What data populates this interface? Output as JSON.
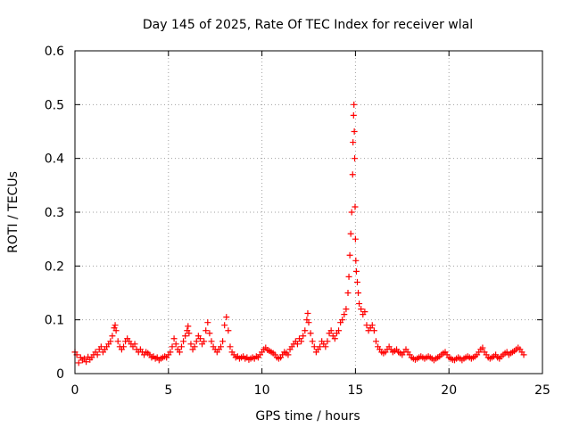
{
  "chart_data": {
    "type": "scatter",
    "title": "Day 145 of 2025, Rate Of TEC Index for receiver wlal",
    "xlabel": "GPS time / hours",
    "ylabel": "ROTI / TECUs",
    "xlim": [
      0,
      25
    ],
    "ylim": [
      0,
      0.6
    ],
    "xticks": [
      0,
      5,
      10,
      15,
      20,
      25
    ],
    "yticks": [
      0,
      0.1,
      0.2,
      0.3,
      0.4,
      0.5,
      0.6
    ],
    "xtick_labels": [
      "0",
      "5",
      "10",
      "15",
      "20",
      "25"
    ],
    "ytick_labels": [
      "0",
      "0.1",
      "0.2",
      "0.3",
      "0.4",
      "0.5",
      "0.6"
    ],
    "grid": true,
    "marker": "plus",
    "color": "#ff0000",
    "points": [
      [
        0.0,
        0.04
      ],
      [
        0.1,
        0.035
      ],
      [
        0.2,
        0.02
      ],
      [
        0.3,
        0.03
      ],
      [
        0.4,
        0.025
      ],
      [
        0.5,
        0.028
      ],
      [
        0.6,
        0.022
      ],
      [
        0.7,
        0.031
      ],
      [
        0.8,
        0.026
      ],
      [
        0.9,
        0.03
      ],
      [
        1.0,
        0.035
      ],
      [
        1.1,
        0.04
      ],
      [
        1.2,
        0.035
      ],
      [
        1.3,
        0.045
      ],
      [
        1.4,
        0.05
      ],
      [
        1.5,
        0.04
      ],
      [
        1.6,
        0.045
      ],
      [
        1.7,
        0.05
      ],
      [
        1.8,
        0.055
      ],
      [
        1.9,
        0.06
      ],
      [
        2.0,
        0.07
      ],
      [
        2.1,
        0.085
      ],
      [
        2.15,
        0.09
      ],
      [
        2.2,
        0.08
      ],
      [
        2.3,
        0.06
      ],
      [
        2.4,
        0.05
      ],
      [
        2.5,
        0.045
      ],
      [
        2.6,
        0.05
      ],
      [
        2.7,
        0.06
      ],
      [
        2.8,
        0.065
      ],
      [
        2.9,
        0.06
      ],
      [
        3.0,
        0.055
      ],
      [
        3.1,
        0.05
      ],
      [
        3.2,
        0.055
      ],
      [
        3.3,
        0.045
      ],
      [
        3.4,
        0.04
      ],
      [
        3.5,
        0.045
      ],
      [
        3.6,
        0.04
      ],
      [
        3.7,
        0.035
      ],
      [
        3.8,
        0.04
      ],
      [
        3.9,
        0.038
      ],
      [
        4.0,
        0.035
      ],
      [
        4.1,
        0.03
      ],
      [
        4.2,
        0.032
      ],
      [
        4.3,
        0.028
      ],
      [
        4.4,
        0.03
      ],
      [
        4.5,
        0.025
      ],
      [
        4.6,
        0.028
      ],
      [
        4.7,
        0.03
      ],
      [
        4.8,
        0.032
      ],
      [
        4.9,
        0.03
      ],
      [
        5.0,
        0.035
      ],
      [
        5.1,
        0.04
      ],
      [
        5.2,
        0.05
      ],
      [
        5.3,
        0.065
      ],
      [
        5.4,
        0.055
      ],
      [
        5.5,
        0.045
      ],
      [
        5.6,
        0.04
      ],
      [
        5.7,
        0.05
      ],
      [
        5.8,
        0.06
      ],
      [
        5.9,
        0.07
      ],
      [
        6.0,
        0.08
      ],
      [
        6.05,
        0.088
      ],
      [
        6.1,
        0.075
      ],
      [
        6.2,
        0.055
      ],
      [
        6.3,
        0.045
      ],
      [
        6.4,
        0.05
      ],
      [
        6.5,
        0.06
      ],
      [
        6.6,
        0.07
      ],
      [
        6.7,
        0.065
      ],
      [
        6.8,
        0.055
      ],
      [
        6.9,
        0.06
      ],
      [
        7.0,
        0.08
      ],
      [
        7.1,
        0.095
      ],
      [
        7.2,
        0.075
      ],
      [
        7.3,
        0.06
      ],
      [
        7.4,
        0.05
      ],
      [
        7.5,
        0.045
      ],
      [
        7.6,
        0.04
      ],
      [
        7.7,
        0.045
      ],
      [
        7.8,
        0.05
      ],
      [
        7.9,
        0.06
      ],
      [
        8.0,
        0.09
      ],
      [
        8.1,
        0.105
      ],
      [
        8.2,
        0.08
      ],
      [
        8.3,
        0.05
      ],
      [
        8.4,
        0.04
      ],
      [
        8.5,
        0.035
      ],
      [
        8.6,
        0.03
      ],
      [
        8.7,
        0.032
      ],
      [
        8.8,
        0.028
      ],
      [
        8.9,
        0.03
      ],
      [
        9.0,
        0.032
      ],
      [
        9.1,
        0.028
      ],
      [
        9.2,
        0.03
      ],
      [
        9.3,
        0.026
      ],
      [
        9.4,
        0.028
      ],
      [
        9.5,
        0.03
      ],
      [
        9.6,
        0.028
      ],
      [
        9.7,
        0.032
      ],
      [
        9.8,
        0.03
      ],
      [
        9.9,
        0.035
      ],
      [
        10.0,
        0.04
      ],
      [
        10.1,
        0.045
      ],
      [
        10.2,
        0.048
      ],
      [
        10.3,
        0.044
      ],
      [
        10.4,
        0.042
      ],
      [
        10.5,
        0.04
      ],
      [
        10.6,
        0.038
      ],
      [
        10.7,
        0.035
      ],
      [
        10.8,
        0.03
      ],
      [
        10.9,
        0.028
      ],
      [
        11.0,
        0.03
      ],
      [
        11.1,
        0.035
      ],
      [
        11.2,
        0.04
      ],
      [
        11.3,
        0.038
      ],
      [
        11.4,
        0.035
      ],
      [
        11.5,
        0.045
      ],
      [
        11.6,
        0.05
      ],
      [
        11.7,
        0.055
      ],
      [
        11.8,
        0.06
      ],
      [
        11.9,
        0.055
      ],
      [
        12.0,
        0.065
      ],
      [
        12.1,
        0.06
      ],
      [
        12.2,
        0.07
      ],
      [
        12.3,
        0.08
      ],
      [
        12.4,
        0.1
      ],
      [
        12.45,
        0.112
      ],
      [
        12.5,
        0.095
      ],
      [
        12.6,
        0.075
      ],
      [
        12.7,
        0.06
      ],
      [
        12.8,
        0.05
      ],
      [
        12.9,
        0.04
      ],
      [
        13.0,
        0.045
      ],
      [
        13.1,
        0.05
      ],
      [
        13.2,
        0.06
      ],
      [
        13.3,
        0.055
      ],
      [
        13.4,
        0.05
      ],
      [
        13.5,
        0.06
      ],
      [
        13.6,
        0.075
      ],
      [
        13.7,
        0.08
      ],
      [
        13.8,
        0.07
      ],
      [
        13.9,
        0.065
      ],
      [
        14.0,
        0.075
      ],
      [
        14.1,
        0.08
      ],
      [
        14.2,
        0.095
      ],
      [
        14.3,
        0.1
      ],
      [
        14.4,
        0.11
      ],
      [
        14.5,
        0.12
      ],
      [
        14.6,
        0.15
      ],
      [
        14.65,
        0.18
      ],
      [
        14.7,
        0.22
      ],
      [
        14.75,
        0.26
      ],
      [
        14.8,
        0.3
      ],
      [
        14.85,
        0.37
      ],
      [
        14.87,
        0.43
      ],
      [
        14.9,
        0.48
      ],
      [
        14.92,
        0.5
      ],
      [
        14.94,
        0.45
      ],
      [
        14.96,
        0.4
      ],
      [
        14.98,
        0.31
      ],
      [
        15.0,
        0.25
      ],
      [
        15.02,
        0.21
      ],
      [
        15.05,
        0.19
      ],
      [
        15.1,
        0.17
      ],
      [
        15.15,
        0.15
      ],
      [
        15.2,
        0.13
      ],
      [
        15.3,
        0.12
      ],
      [
        15.4,
        0.11
      ],
      [
        15.5,
        0.115
      ],
      [
        15.6,
        0.09
      ],
      [
        15.7,
        0.08
      ],
      [
        15.8,
        0.085
      ],
      [
        15.9,
        0.09
      ],
      [
        16.0,
        0.08
      ],
      [
        16.1,
        0.06
      ],
      [
        16.2,
        0.05
      ],
      [
        16.3,
        0.045
      ],
      [
        16.4,
        0.04
      ],
      [
        16.5,
        0.038
      ],
      [
        16.6,
        0.04
      ],
      [
        16.7,
        0.045
      ],
      [
        16.8,
        0.05
      ],
      [
        16.9,
        0.045
      ],
      [
        17.0,
        0.04
      ],
      [
        17.1,
        0.042
      ],
      [
        17.2,
        0.045
      ],
      [
        17.3,
        0.04
      ],
      [
        17.4,
        0.038
      ],
      [
        17.5,
        0.035
      ],
      [
        17.6,
        0.04
      ],
      [
        17.7,
        0.045
      ],
      [
        17.8,
        0.04
      ],
      [
        17.9,
        0.035
      ],
      [
        18.0,
        0.03
      ],
      [
        18.1,
        0.028
      ],
      [
        18.2,
        0.026
      ],
      [
        18.3,
        0.028
      ],
      [
        18.4,
        0.03
      ],
      [
        18.5,
        0.032
      ],
      [
        18.6,
        0.03
      ],
      [
        18.7,
        0.028
      ],
      [
        18.8,
        0.03
      ],
      [
        18.9,
        0.032
      ],
      [
        19.0,
        0.03
      ],
      [
        19.1,
        0.028
      ],
      [
        19.2,
        0.025
      ],
      [
        19.3,
        0.028
      ],
      [
        19.4,
        0.03
      ],
      [
        19.5,
        0.032
      ],
      [
        19.6,
        0.035
      ],
      [
        19.7,
        0.038
      ],
      [
        19.8,
        0.04
      ],
      [
        19.9,
        0.035
      ],
      [
        20.0,
        0.03
      ],
      [
        20.1,
        0.028
      ],
      [
        20.2,
        0.026
      ],
      [
        20.3,
        0.025
      ],
      [
        20.4,
        0.028
      ],
      [
        20.5,
        0.03
      ],
      [
        20.6,
        0.028
      ],
      [
        20.7,
        0.025
      ],
      [
        20.8,
        0.028
      ],
      [
        20.9,
        0.03
      ],
      [
        21.0,
        0.032
      ],
      [
        21.1,
        0.03
      ],
      [
        21.2,
        0.028
      ],
      [
        21.3,
        0.03
      ],
      [
        21.4,
        0.032
      ],
      [
        21.5,
        0.035
      ],
      [
        21.6,
        0.04
      ],
      [
        21.7,
        0.045
      ],
      [
        21.8,
        0.048
      ],
      [
        21.9,
        0.04
      ],
      [
        22.0,
        0.035
      ],
      [
        22.1,
        0.03
      ],
      [
        22.2,
        0.028
      ],
      [
        22.3,
        0.03
      ],
      [
        22.4,
        0.032
      ],
      [
        22.5,
        0.035
      ],
      [
        22.6,
        0.03
      ],
      [
        22.7,
        0.028
      ],
      [
        22.8,
        0.032
      ],
      [
        22.9,
        0.035
      ],
      [
        23.0,
        0.038
      ],
      [
        23.1,
        0.04
      ],
      [
        23.2,
        0.035
      ],
      [
        23.3,
        0.038
      ],
      [
        23.4,
        0.04
      ],
      [
        23.5,
        0.042
      ],
      [
        23.6,
        0.045
      ],
      [
        23.7,
        0.048
      ],
      [
        23.8,
        0.045
      ],
      [
        23.9,
        0.04
      ],
      [
        24.0,
        0.035
      ]
    ]
  }
}
